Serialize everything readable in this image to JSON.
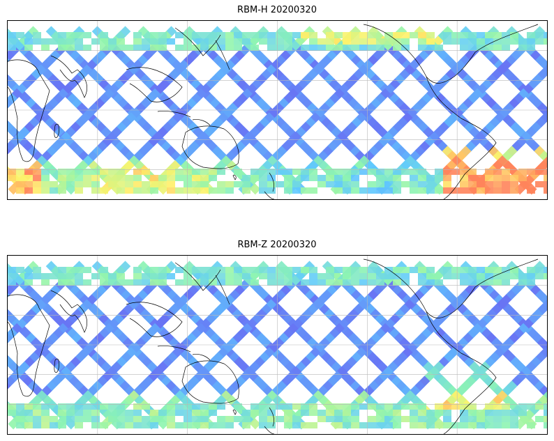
{
  "panels": [
    {
      "title": "RBM-H 20200320",
      "variant": "h",
      "colormap": [
        "#6a5cf0",
        "#5fc8ff",
        "#8ff5b0",
        "#fff36a",
        "#ff7a5a"
      ]
    },
    {
      "title": "RBM-Z 20200320",
      "variant": "z",
      "colormap": [
        "#6a5cf0",
        "#5fc8ff",
        "#8ff5b0",
        "#fff36a",
        "#ff7a5a"
      ]
    }
  ],
  "map": {
    "projection": "plate-carree",
    "central_longitude": 180,
    "gridlines": true,
    "coastlines": true
  }
}
